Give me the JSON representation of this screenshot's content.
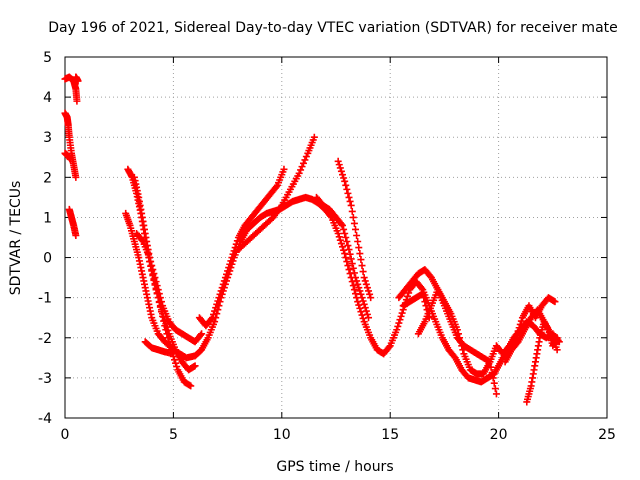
{
  "chart_data": {
    "type": "scatter",
    "title": "Day 196 of 2021, Sidereal Day-to-day VTEC variation (SDTVAR) for receiver mate",
    "xlabel": "GPS time / hours",
    "ylabel": "SDTVAR / TECUs",
    "xlim": [
      0,
      25
    ],
    "ylim": [
      -4,
      5
    ],
    "xticks": [
      "0",
      "5",
      "10",
      "15",
      "20",
      "25"
    ],
    "yticks": [
      "-4",
      "-3",
      "-2",
      "-1",
      "0",
      "1",
      "2",
      "3",
      "4",
      "5"
    ],
    "grid": true,
    "marker": "+",
    "color": "#ff0000",
    "series": [
      {
        "name": "s1",
        "x": [
          0.0,
          0.2,
          0.4,
          0.5,
          0.55
        ],
        "y": [
          4.45,
          4.5,
          4.4,
          4.2,
          3.9
        ]
      },
      {
        "name": "s2",
        "x": [
          0.5,
          0.55,
          0.6
        ],
        "y": [
          4.5,
          4.45,
          4.4
        ]
      },
      {
        "name": "s3",
        "x": [
          0.0,
          0.1,
          0.15,
          0.2,
          0.3,
          0.4,
          0.5
        ],
        "y": [
          3.6,
          3.5,
          3.3,
          3.0,
          2.6,
          2.3,
          2.0
        ]
      },
      {
        "name": "s4",
        "x": [
          0.0,
          0.1,
          0.2,
          0.25
        ],
        "y": [
          2.6,
          2.55,
          2.5,
          2.45
        ]
      },
      {
        "name": "s5",
        "x": [
          0.2,
          0.3,
          0.4,
          0.5
        ],
        "y": [
          1.2,
          1.0,
          0.8,
          0.55
        ]
      },
      {
        "name": "s6",
        "x": [
          2.8,
          3.0,
          3.2,
          3.4,
          3.6,
          3.8,
          4.0,
          4.3,
          4.6,
          5.0,
          5.3,
          5.6,
          6.0,
          6.3,
          6.6,
          6.9,
          7.2,
          7.5,
          7.8,
          8.1,
          8.4,
          8.7,
          9.0,
          9.3,
          9.6,
          9.9,
          10.2,
          10.5,
          10.8,
          11.1,
          11.4,
          11.7,
          12.0,
          12.3,
          12.6,
          12.9,
          13.2,
          13.5,
          13.8,
          14.1,
          14.4,
          14.7,
          15.0,
          15.3,
          15.6,
          15.9,
          16.2,
          16.5,
          16.8,
          17.1,
          17.4,
          17.7,
          18.0,
          18.3,
          18.6,
          18.9,
          19.2,
          19.5,
          19.8,
          20.1,
          20.4,
          20.7,
          21.0,
          21.3,
          21.6,
          21.9,
          22.2,
          22.5,
          22.8
        ],
        "y": [
          1.1,
          0.8,
          0.4,
          0.0,
          -0.5,
          -1.0,
          -1.5,
          -1.9,
          -2.1,
          -2.3,
          -2.4,
          -2.5,
          -2.45,
          -2.3,
          -2.0,
          -1.6,
          -1.0,
          -0.5,
          0.0,
          0.4,
          0.7,
          0.85,
          1.0,
          1.1,
          1.15,
          1.2,
          1.3,
          1.4,
          1.45,
          1.5,
          1.45,
          1.35,
          1.2,
          1.0,
          0.6,
          0.1,
          -0.5,
          -1.1,
          -1.6,
          -2.0,
          -2.3,
          -2.4,
          -2.2,
          -1.8,
          -1.3,
          -0.8,
          -0.6,
          -0.8,
          -1.2,
          -1.6,
          -2.0,
          -2.3,
          -2.5,
          -2.8,
          -3.0,
          -3.05,
          -3.1,
          -3.0,
          -2.9,
          -2.6,
          -2.3,
          -2.0,
          -1.8,
          -1.6,
          -1.7,
          -1.9,
          -2.0,
          -1.9,
          -2.1
        ]
      },
      {
        "name": "s7",
        "x": [
          2.9,
          3.1,
          3.3,
          3.5,
          3.7,
          3.9,
          4.2,
          4.5,
          4.8,
          5.1,
          5.4,
          5.7,
          6.0
        ],
        "y": [
          2.2,
          2.0,
          1.6,
          1.1,
          0.5,
          -0.1,
          -0.8,
          -1.4,
          -1.9,
          -2.3,
          -2.6,
          -2.8,
          -2.7
        ]
      },
      {
        "name": "s8",
        "x": [
          3.2,
          3.4,
          3.6,
          3.8,
          4.0,
          4.3,
          4.6,
          4.9,
          5.2,
          5.5,
          5.8
        ],
        "y": [
          2.0,
          1.5,
          0.9,
          0.3,
          -0.3,
          -1.0,
          -1.7,
          -2.3,
          -2.8,
          -3.1,
          -3.2
        ]
      },
      {
        "name": "s9",
        "x": [
          3.3,
          3.6,
          3.9,
          4.2,
          4.5,
          4.8,
          5.1,
          5.4,
          5.7,
          6.0,
          6.3
        ],
        "y": [
          0.6,
          0.4,
          0.0,
          -0.6,
          -1.2,
          -1.6,
          -1.8,
          -1.9,
          -2.0,
          -2.1,
          -1.9
        ]
      },
      {
        "name": "s10",
        "x": [
          3.7,
          4.0,
          4.3,
          4.6,
          5.0
        ],
        "y": [
          -2.1,
          -2.25,
          -2.3,
          -2.35,
          -2.4
        ]
      },
      {
        "name": "s11",
        "x": [
          6.2,
          6.5,
          6.8,
          7.1,
          7.4,
          7.7,
          8.0,
          8.3,
          8.6,
          8.9,
          9.2,
          9.5,
          9.8,
          10.1
        ],
        "y": [
          -1.5,
          -1.7,
          -1.5,
          -1.0,
          -0.5,
          0.0,
          0.5,
          0.8,
          1.0,
          1.2,
          1.4,
          1.6,
          1.8,
          2.2
        ]
      },
      {
        "name": "s12",
        "x": [
          8.0,
          8.4,
          8.8,
          9.2,
          9.6,
          10.0,
          10.4,
          10.8,
          11.2,
          11.5
        ],
        "y": [
          0.2,
          0.4,
          0.6,
          0.8,
          1.0,
          1.3,
          1.7,
          2.1,
          2.6,
          3.0
        ]
      },
      {
        "name": "s13",
        "x": [
          11.6,
          11.9,
          12.2,
          12.5,
          12.8,
          13.1,
          13.4,
          13.7,
          14.0
        ],
        "y": [
          1.5,
          1.3,
          1.2,
          1.0,
          0.8,
          0.2,
          -0.5,
          -1.0,
          -1.5
        ]
      },
      {
        "name": "s14",
        "x": [
          12.6,
          12.9,
          13.2,
          13.5,
          13.8,
          14.1
        ],
        "y": [
          2.4,
          1.9,
          1.3,
          0.4,
          -0.5,
          -1.0
        ]
      },
      {
        "name": "s15",
        "x": [
          15.4,
          15.7,
          16.0,
          16.3,
          16.6,
          16.9,
          17.2,
          17.5,
          17.8,
          18.1,
          18.4,
          18.7,
          19.0,
          19.3,
          19.6,
          19.9
        ],
        "y": [
          -1.0,
          -0.8,
          -0.6,
          -0.4,
          -0.3,
          -0.5,
          -0.8,
          -1.2,
          -1.6,
          -2.0,
          -2.2,
          -2.3,
          -2.4,
          -2.5,
          -2.6,
          -3.4
        ]
      },
      {
        "name": "s16",
        "x": [
          15.6,
          15.9,
          16.2,
          16.5,
          16.8
        ],
        "y": [
          -1.2,
          -1.1,
          -1.0,
          -0.9,
          -1.5
        ]
      },
      {
        "name": "s17",
        "x": [
          16.3,
          16.6,
          16.9,
          17.2,
          17.5,
          17.8,
          18.1,
          18.4,
          18.7,
          19.0,
          19.3,
          19.6,
          19.9,
          20.2,
          20.5,
          20.8,
          21.1,
          21.4,
          21.7,
          22.0,
          22.3,
          22.6
        ],
        "y": [
          -1.9,
          -1.6,
          -1.2,
          -0.8,
          -1.1,
          -1.4,
          -1.8,
          -2.4,
          -2.8,
          -2.9,
          -2.9,
          -2.6,
          -2.2,
          -2.4,
          -2.2,
          -2.0,
          -1.5,
          -1.2,
          -1.5,
          -1.2,
          -1.0,
          -1.1
        ]
      },
      {
        "name": "s18",
        "x": [
          21.3,
          21.5,
          21.7,
          21.9,
          22.1,
          22.3,
          22.5,
          22.7
        ],
        "y": [
          -3.6,
          -3.2,
          -2.6,
          -2.0,
          -1.6,
          -1.8,
          -2.2,
          -2.0
        ]
      },
      {
        "name": "s19",
        "x": [
          20.3,
          20.6,
          20.9,
          21.2,
          21.5,
          21.8,
          22.1,
          22.4,
          22.7
        ],
        "y": [
          -2.6,
          -2.3,
          -2.1,
          -1.8,
          -1.5,
          -1.3,
          -1.6,
          -1.9,
          -2.3
        ]
      }
    ]
  }
}
